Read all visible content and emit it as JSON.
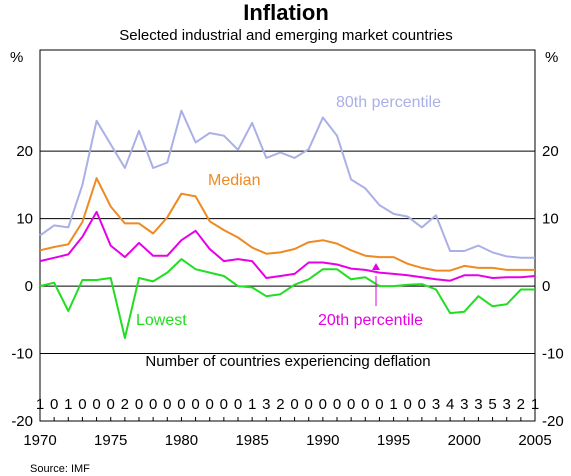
{
  "chart_data": {
    "type": "line",
    "title": "Inflation",
    "subtitle": "Selected industrial and emerging market countries",
    "ylabel_left": "%",
    "ylabel_right": "%",
    "xlim": [
      1970,
      2005
    ],
    "ylim": [
      -20,
      35
    ],
    "y_ticks": [
      -20,
      -10,
      0,
      10,
      20
    ],
    "x_ticks": [
      1970,
      1975,
      1980,
      1985,
      1990,
      1995,
      2000,
      2005
    ],
    "x": [
      1970,
      1971,
      1972,
      1973,
      1974,
      1975,
      1976,
      1977,
      1978,
      1979,
      1980,
      1981,
      1982,
      1983,
      1984,
      1985,
      1986,
      1987,
      1988,
      1989,
      1990,
      1991,
      1992,
      1993,
      1994,
      1995,
      1996,
      1997,
      1998,
      1999,
      2000,
      2001,
      2002,
      2003,
      2004,
      2005
    ],
    "series": [
      {
        "name": "80th percentile",
        "color": "#aab0e6",
        "values": [
          7.5,
          9,
          8.7,
          15,
          24.5,
          21,
          17.5,
          23,
          17.5,
          18.3,
          26,
          21.3,
          22.7,
          22.3,
          20.2,
          24.2,
          19,
          19.8,
          19,
          20.3,
          25,
          22.3,
          15.8,
          14.5,
          12,
          10.7,
          10.3,
          8.7,
          10.5,
          5.2,
          5.2,
          6,
          5,
          4.4,
          4.2,
          4.2
        ]
      },
      {
        "name": "Median",
        "color": "#ee8a22",
        "values": [
          5.3,
          5.8,
          6.2,
          9.5,
          16,
          11.8,
          9.3,
          9.3,
          7.8,
          10.2,
          13.7,
          13.3,
          9.6,
          8.3,
          7.2,
          5.7,
          4.8,
          5,
          5.5,
          6.5,
          6.8,
          6.3,
          5.3,
          4.5,
          4.3,
          4.3,
          3.3,
          2.7,
          2.3,
          2.3,
          3,
          2.7,
          2.7,
          2.4,
          2.4,
          2.4
        ]
      },
      {
        "name": "20th percentile",
        "color": "#e600e6",
        "values": [
          3.7,
          4.2,
          4.7,
          7.3,
          11,
          6,
          4.3,
          6.4,
          4.5,
          4.5,
          6.8,
          8.2,
          5.5,
          3.7,
          4,
          3.7,
          1.2,
          1.5,
          1.8,
          3.5,
          3.5,
          3.2,
          2.6,
          2.4,
          2,
          1.8,
          1.6,
          1.3,
          1,
          0.8,
          1.6,
          1.6,
          1.2,
          1.3,
          1.3,
          1.5
        ]
      },
      {
        "name": "Lowest",
        "color": "#22dd22",
        "values": [
          0,
          0.5,
          -3.7,
          0.9,
          0.9,
          1.2,
          -7.7,
          1.2,
          0.7,
          2,
          4,
          2.5,
          2,
          1.5,
          0,
          -0.2,
          -1.5,
          -1.2,
          0.2,
          1,
          2.5,
          2.5,
          1,
          1.3,
          0,
          0,
          0.2,
          0.3,
          -0.5,
          -4,
          -3.8,
          -1.5,
          -3,
          -2.7,
          -0.5,
          -0.5
        ]
      }
    ],
    "annotations": {
      "p80": "80th percentile",
      "median": "Median",
      "p20": "20th percentile",
      "lowest": "Lowest"
    },
    "deflation": {
      "label": "Number of countries experiencing deflation",
      "counts": [
        "1",
        "0",
        "1",
        "0",
        "0",
        "0",
        "2",
        "0",
        "0",
        "0",
        "0",
        "0",
        "0",
        "0",
        "0",
        "1",
        "3",
        "2",
        "0",
        "0",
        "0",
        "0",
        "0",
        "0",
        "0",
        "1",
        "0",
        "0",
        "3",
        "4",
        "3",
        "3",
        "5",
        "3",
        "2",
        "1"
      ]
    },
    "source": "Source: IMF"
  }
}
